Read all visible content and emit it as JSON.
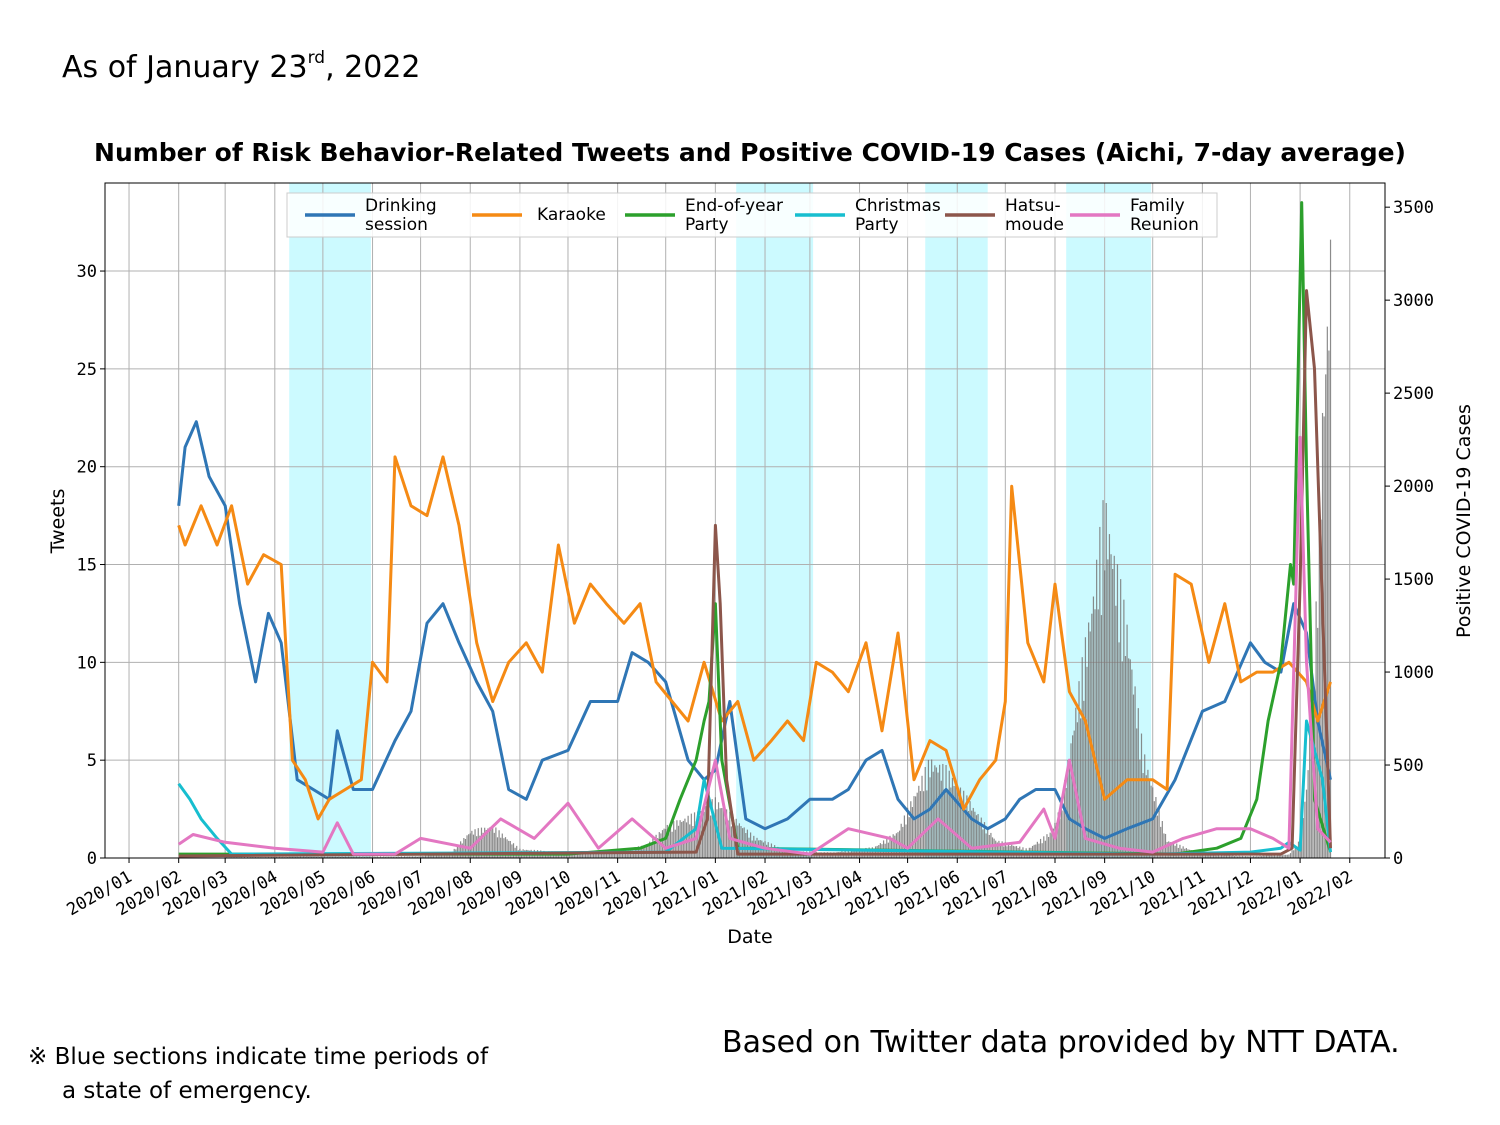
{
  "header": {
    "as_of_prefix": "As of January 23",
    "as_of_sup": "rd",
    "as_of_suffix": ", 2022"
  },
  "footer": {
    "note_line1": "※ Blue sections indicate time periods of",
    "note_line2": "a state of emergency.",
    "source": "Based on Twitter data provided by NTT DATA."
  },
  "chart_data": {
    "type": "line",
    "title": "Number of Risk Behavior-Related Tweets and Positive COVID-19 Cases (Aichi, 7-day average)",
    "xlabel": "Date",
    "ylabel": "Tweets",
    "y2label": "Positive COVID-19 Cases",
    "xlim": [
      "2019-12-17",
      "2022-02-23"
    ],
    "ylim": [
      0,
      34.5
    ],
    "y2lim": [
      0,
      3630
    ],
    "x_ticks": [
      "2020/01",
      "2020/02",
      "2020/03",
      "2020/04",
      "2020/05",
      "2020/06",
      "2020/07",
      "2020/08",
      "2020/09",
      "2020/10",
      "2020/11",
      "2020/12",
      "2021/01",
      "2021/02",
      "2021/03",
      "2021/04",
      "2021/05",
      "2021/06",
      "2021/07",
      "2021/08",
      "2021/09",
      "2021/10",
      "2021/11",
      "2021/12",
      "2022/01",
      "2022/02"
    ],
    "y_ticks": [
      0,
      5,
      10,
      15,
      20,
      25,
      30
    ],
    "y2_ticks": [
      0,
      500,
      1000,
      1500,
      2000,
      2500,
      3000,
      3500
    ],
    "grid": true,
    "legend_position": "top",
    "shaded_periods": [
      [
        "2020-04-10",
        "2020-05-31"
      ],
      [
        "2021-01-14",
        "2021-03-03"
      ],
      [
        "2021-05-12",
        "2021-06-20"
      ],
      [
        "2021-08-08",
        "2021-09-30"
      ]
    ],
    "shade_color": "#ccfaff",
    "series": [
      {
        "name": "Drinking\nsession",
        "color": "#2f76b5",
        "axis": "left",
        "x": [
          "2020-02-01",
          "2020-02-05",
          "2020-02-12",
          "2020-02-20",
          "2020-03-01",
          "2020-03-10",
          "2020-03-20",
          "2020-03-28",
          "2020-04-05",
          "2020-04-15",
          "2020-04-25",
          "2020-05-05",
          "2020-05-10",
          "2020-05-20",
          "2020-06-01",
          "2020-06-15",
          "2020-06-25",
          "2020-07-05",
          "2020-07-15",
          "2020-07-25",
          "2020-08-05",
          "2020-08-15",
          "2020-08-25",
          "2020-09-05",
          "2020-09-15",
          "2020-10-01",
          "2020-10-15",
          "2020-11-01",
          "2020-11-10",
          "2020-11-20",
          "2020-12-01",
          "2020-12-15",
          "2020-12-25",
          "2021-01-01",
          "2021-01-10",
          "2021-01-20",
          "2021-02-01",
          "2021-02-15",
          "2021-03-01",
          "2021-03-15",
          "2021-03-25",
          "2021-04-05",
          "2021-04-15",
          "2021-04-25",
          "2021-05-05",
          "2021-05-15",
          "2021-05-25",
          "2021-06-10",
          "2021-06-20",
          "2021-07-01",
          "2021-07-10",
          "2021-07-20",
          "2021-08-01",
          "2021-08-10",
          "2021-08-20",
          "2021-09-01",
          "2021-09-15",
          "2021-10-01",
          "2021-10-15",
          "2021-11-01",
          "2021-11-15",
          "2021-12-01",
          "2021-12-10",
          "2021-12-20",
          "2021-12-28",
          "2022-01-05",
          "2022-01-12",
          "2022-01-20"
        ],
        "y": [
          18,
          21,
          22.3,
          19.5,
          18,
          13,
          9,
          12.5,
          11,
          4,
          3.5,
          3,
          6.5,
          3.5,
          3.5,
          6,
          7.5,
          12,
          13,
          11,
          9,
          7.5,
          3.5,
          3,
          5,
          5.5,
          8,
          8,
          10.5,
          10,
          9,
          5,
          4,
          4.5,
          8,
          2,
          1.5,
          2,
          3,
          3,
          3.5,
          5,
          5.5,
          3,
          2,
          2.5,
          3.5,
          2,
          1.5,
          2,
          3,
          3.5,
          3.5,
          2,
          1.5,
          1,
          1.5,
          2,
          4,
          7.5,
          8,
          11,
          10,
          9.5,
          13,
          11.5,
          7,
          4
        ]
      },
      {
        "name": "Karaoke",
        "color": "#f58a14",
        "axis": "left",
        "x": [
          "2020-02-01",
          "2020-02-05",
          "2020-02-15",
          "2020-02-25",
          "2020-03-05",
          "2020-03-15",
          "2020-03-25",
          "2020-04-05",
          "2020-04-12",
          "2020-04-20",
          "2020-04-28",
          "2020-05-05",
          "2020-05-15",
          "2020-05-25",
          "2020-06-01",
          "2020-06-10",
          "2020-06-15",
          "2020-06-25",
          "2020-07-05",
          "2020-07-15",
          "2020-07-25",
          "2020-08-05",
          "2020-08-15",
          "2020-08-25",
          "2020-09-05",
          "2020-09-15",
          "2020-09-25",
          "2020-10-05",
          "2020-10-15",
          "2020-10-25",
          "2020-11-05",
          "2020-11-15",
          "2020-11-25",
          "2020-12-05",
          "2020-12-15",
          "2020-12-25",
          "2021-01-05",
          "2021-01-15",
          "2021-01-25",
          "2021-02-05",
          "2021-02-15",
          "2021-02-25",
          "2021-03-05",
          "2021-03-15",
          "2021-03-25",
          "2021-04-05",
          "2021-04-15",
          "2021-04-25",
          "2021-05-05",
          "2021-05-15",
          "2021-05-25",
          "2021-06-05",
          "2021-06-15",
          "2021-06-25",
          "2021-07-01",
          "2021-07-05",
          "2021-07-15",
          "2021-07-25",
          "2021-08-01",
          "2021-08-10",
          "2021-08-20",
          "2021-09-01",
          "2021-09-15",
          "2021-10-01",
          "2021-10-10",
          "2021-10-15",
          "2021-10-25",
          "2021-11-05",
          "2021-11-15",
          "2021-11-25",
          "2021-12-05",
          "2021-12-15",
          "2021-12-25",
          "2022-01-05",
          "2022-01-12",
          "2022-01-20"
        ],
        "y": [
          17,
          16,
          18,
          16,
          18,
          14,
          15.5,
          15,
          5,
          4,
          2,
          3,
          3.5,
          4,
          10,
          9,
          20.5,
          18,
          17.5,
          20.5,
          17,
          11,
          8,
          10,
          11,
          9.5,
          16,
          12,
          14,
          13,
          12,
          13,
          9,
          8,
          7,
          10,
          7,
          8,
          5,
          6,
          7,
          6,
          10,
          9.5,
          8.5,
          11,
          6.5,
          11.5,
          4,
          6,
          5.5,
          2.5,
          4,
          5,
          8,
          19,
          11,
          9,
          14,
          8.5,
          7,
          3,
          4,
          4,
          3.5,
          14.5,
          14,
          10,
          13,
          9,
          9.5,
          9.5,
          10,
          9,
          7,
          9
        ]
      },
      {
        "name": "End-of-year\nParty",
        "color": "#2ca02c",
        "axis": "left",
        "x": [
          "2020-02-01",
          "2020-10-01",
          "2020-11-15",
          "2020-12-01",
          "2020-12-10",
          "2020-12-20",
          "2020-12-25",
          "2020-12-28",
          "2021-01-01",
          "2021-01-05",
          "2021-01-15",
          "2021-10-15",
          "2021-11-10",
          "2021-11-25",
          "2021-12-05",
          "2021-12-12",
          "2021-12-20",
          "2021-12-26",
          "2021-12-28",
          "2022-01-02",
          "2022-01-05",
          "2022-01-10",
          "2022-01-20"
        ],
        "y": [
          0.2,
          0.2,
          0.5,
          1,
          3,
          5,
          7,
          8,
          13,
          5,
          0.5,
          0.2,
          0.5,
          1,
          3,
          7,
          10,
          15,
          14,
          33.5,
          20,
          3,
          0.3
        ]
      },
      {
        "name": "Christmas\nParty",
        "color": "#17becf",
        "axis": "left",
        "x": [
          "2020-02-01",
          "2020-02-08",
          "2020-02-15",
          "2020-02-25",
          "2020-03-05",
          "2020-12-01",
          "2020-12-20",
          "2020-12-25",
          "2021-01-05",
          "2021-10-01",
          "2021-12-01",
          "2021-12-20",
          "2021-12-25",
          "2022-01-01",
          "2022-01-05",
          "2022-01-15",
          "2022-01-20"
        ],
        "y": [
          3.8,
          3,
          2,
          1,
          0.2,
          0.3,
          1.5,
          4,
          0.5,
          0.2,
          0.3,
          0.5,
          0.8,
          0.4,
          7,
          4,
          0.3
        ]
      },
      {
        "name": "Hatsu-\nmoude",
        "color": "#8c564b",
        "axis": "left",
        "x": [
          "2020-02-01",
          "2020-12-20",
          "2020-12-27",
          "2021-01-01",
          "2021-01-04",
          "2021-01-08",
          "2021-01-15",
          "2021-12-20",
          "2021-12-27",
          "2022-01-01",
          "2022-01-05",
          "2022-01-10",
          "2022-01-20"
        ],
        "y": [
          0.1,
          0.3,
          2,
          17,
          13,
          4,
          0.2,
          0.2,
          0.5,
          14,
          29,
          25,
          0.5
        ]
      },
      {
        "name": "Family\nReunion",
        "color": "#e377c2",
        "axis": "left",
        "x": [
          "2020-02-01",
          "2020-02-10",
          "2020-03-01",
          "2020-04-01",
          "2020-05-01",
          "2020-05-10",
          "2020-05-20",
          "2020-06-15",
          "2020-07-01",
          "2020-08-01",
          "2020-08-20",
          "2020-09-10",
          "2020-10-01",
          "2020-10-20",
          "2020-11-10",
          "2020-12-01",
          "2020-12-20",
          "2021-01-01",
          "2021-01-10",
          "2021-02-01",
          "2021-03-01",
          "2021-03-25",
          "2021-04-20",
          "2021-05-01",
          "2021-05-20",
          "2021-06-10",
          "2021-07-10",
          "2021-07-25",
          "2021-08-01",
          "2021-08-10",
          "2021-08-20",
          "2021-09-10",
          "2021-10-01",
          "2021-10-20",
          "2021-11-10",
          "2021-12-01",
          "2021-12-15",
          "2021-12-25",
          "2022-01-01",
          "2022-01-05",
          "2022-01-12",
          "2022-01-20"
        ],
        "y": [
          0.7,
          1.2,
          0.8,
          0.5,
          0.3,
          1.8,
          0.2,
          0.2,
          1,
          0.5,
          2,
          1,
          2.8,
          0.5,
          2,
          0.5,
          1,
          5,
          1,
          0.5,
          0.2,
          1.5,
          1,
          0.5,
          2,
          0.5,
          0.8,
          2.5,
          1,
          5,
          1,
          0.5,
          0.3,
          1,
          1.5,
          1.5,
          1,
          0.5,
          21.5,
          10,
          1.5,
          0.8
        ]
      },
      {
        "name": "Positive COVID-19 Cases",
        "color": "#777777",
        "axis": "right",
        "kind": "bars",
        "x": [
          "2020-03-01",
          "2020-07-01",
          "2020-07-20",
          "2020-08-01",
          "2020-08-15",
          "2020-09-01",
          "2020-10-01",
          "2020-11-01",
          "2020-11-20",
          "2020-12-01",
          "2020-12-20",
          "2021-01-01",
          "2021-01-10",
          "2021-01-25",
          "2021-02-15",
          "2021-03-15",
          "2021-04-10",
          "2021-04-25",
          "2021-05-05",
          "2021-05-15",
          "2021-05-25",
          "2021-06-10",
          "2021-06-25",
          "2021-07-15",
          "2021-07-30",
          "2021-08-05",
          "2021-08-15",
          "2021-08-25",
          "2021-09-01",
          "2021-09-05",
          "2021-09-15",
          "2021-09-25",
          "2021-10-10",
          "2021-11-01",
          "2021-12-01",
          "2021-12-25",
          "2022-01-01",
          "2022-01-05",
          "2022-01-10",
          "2022-01-15",
          "2022-01-20"
        ],
        "y": [
          5,
          10,
          30,
          150,
          180,
          50,
          30,
          30,
          80,
          180,
          250,
          330,
          250,
          120,
          40,
          30,
          60,
          150,
          350,
          550,
          500,
          300,
          100,
          50,
          150,
          300,
          900,
          1500,
          2000,
          1800,
          1300,
          600,
          100,
          20,
          10,
          20,
          100,
          400,
          1100,
          2500,
          3400
        ]
      }
    ]
  }
}
